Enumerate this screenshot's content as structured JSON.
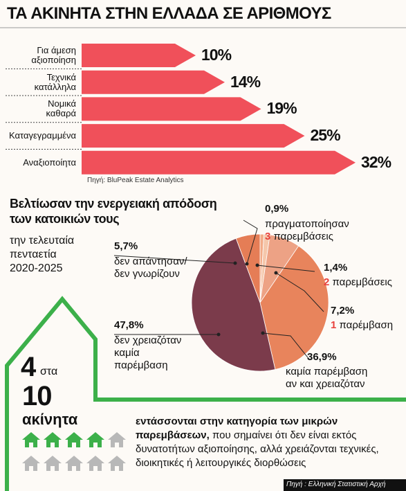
{
  "header": {
    "title": "ΤΑ ΑΚΙΝΗΤΑ ΣΤΗΝ ΕΛΛΑΔΑ ΣΕ ΑΡΙΘΜΟΥΣ"
  },
  "chart_data": [
    {
      "type": "arrowbar",
      "categories": [
        "Για άμεση\nαξιοποίηση",
        "Τεχνικά\nκατάλληλα",
        "Νομικά\nκαθαρά",
        "Καταγεγραμμένα",
        "Αναξιοποίητα"
      ],
      "values": [
        10,
        14,
        19,
        25,
        32
      ],
      "value_labels": [
        "10%",
        "14%",
        "19%",
        "25%",
        "32%"
      ],
      "color": "#f0505a",
      "source": "Πηγή: BluPeak Estate Analytics"
    },
    {
      "type": "pie",
      "title": "Βελτίωσαν την ενεργειακή απόδοση\nτων κατοικιών τους",
      "subtitle": "την τελευταία\nπενταετία\n2020-2025",
      "categories": [
        "πραγματοποίησαν\n3 παρεμβάσεις",
        "2 παρεμβάσεις",
        "1 παρέμβαση",
        "καμία παρέμβαση\nαν και χρειαζόταν",
        "δεν χρειαζόταν\nκαμία\nπαρέμβαση",
        "δεν απάντησαν/\nδεν γνωρίζουν"
      ],
      "values": [
        0.9,
        1.4,
        7.2,
        36.9,
        47.8,
        5.7
      ],
      "value_labels": [
        "0,9%",
        "1,4%",
        "7,2%",
        "36,9%",
        "47,8%",
        "5,7%"
      ],
      "colors": [
        "#f2ab88",
        "#f5c7ab",
        "#eda285",
        "#e8845c",
        "#7b3b4b",
        "#e57d56"
      ]
    }
  ],
  "stat": {
    "count": 4,
    "of": "στα",
    "total": 10,
    "label": "ακίνητα"
  },
  "note": {
    "lead": "εντάσσονται στην κατηγορία των μικρών παρεμβάσεων,",
    "text": " που σημαίνει ότι δεν είναι εκτός δυνατοτήτων αξιοποίησης, αλλά χρειάζονται τεχνικές, διοικητικές ή λειτουργικές διορθώσεις"
  },
  "footer": {
    "source": "Πηγή : Ελληνική Στατιστική Αρχή"
  }
}
